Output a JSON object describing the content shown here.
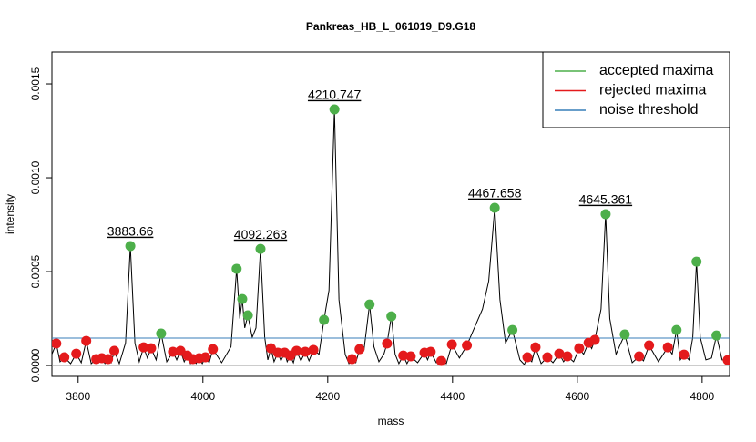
{
  "chart_data": {
    "type": "spectrum",
    "title": "Pankreas_HB_L_061019_D9.G18",
    "x_label": "mass",
    "y_label": "intensity",
    "xlim": [
      3758,
      4844
    ],
    "ylim": [
      -5.8e-05,
      0.00167
    ],
    "xticks": [
      3800,
      4000,
      4200,
      4400,
      4600,
      4800
    ],
    "yticks": [
      {
        "value": 0,
        "label": "0.0000"
      },
      {
        "value": 0.0005,
        "label": "0.0005"
      },
      {
        "value": 0.001,
        "label": "0.0010"
      },
      {
        "value": 0.0015,
        "label": "0.0015"
      }
    ],
    "legend_position": "topright",
    "spectrum": {
      "color": "#000000",
      "x": [
        3758,
        3765,
        3771,
        3778,
        3788,
        3797,
        3805,
        3813,
        3821,
        3829,
        3833,
        3838,
        3843,
        3848,
        3853,
        3858,
        3866,
        3876,
        3883.66,
        3891,
        3898,
        3905,
        3911,
        3917,
        3925,
        3933,
        3942,
        3952,
        3958,
        3964,
        3970,
        3975,
        3980,
        3984,
        3989,
        3994,
        3999,
        4004,
        4010,
        4016,
        4030,
        4045,
        4054,
        4059,
        4063,
        4067,
        4072,
        4079,
        4085,
        4092.263,
        4099,
        4104,
        4109,
        4114,
        4120,
        4125,
        4131,
        4135,
        4140,
        4145,
        4150,
        4157,
        4164,
        4170,
        4177,
        4186,
        4194,
        4202,
        4210.747,
        4218,
        4228,
        4234,
        4239,
        4245,
        4251,
        4258,
        4267,
        4274,
        4282,
        4290,
        4295,
        4302,
        4308,
        4314,
        4321,
        4327,
        4333,
        4344,
        4355,
        4360,
        4365,
        4374,
        4382,
        4390,
        4399,
        4411,
        4423,
        4435,
        4448,
        4458,
        4467.658,
        4476,
        4485,
        4496,
        4508,
        4515,
        4520,
        4527,
        4533,
        4542,
        4552,
        4561,
        4571,
        4578,
        4584,
        4594,
        4603,
        4610,
        4618,
        4623,
        4628,
        4638,
        4645.361,
        4652,
        4662,
        4676,
        4688,
        4699,
        4706,
        4715,
        4730,
        4745,
        4752,
        4759,
        4765,
        4771,
        4779,
        4785,
        4791,
        4797,
        4806,
        4815,
        4823,
        4832,
        4841,
        4844
      ],
      "values": [
        6e-05,
        0.000117,
        2e-05,
        4.4e-05,
        1e-05,
        6.3e-05,
        1.5e-05,
        0.000131,
        1e-05,
        3.4e-05,
        1.5e-05,
        3.9e-05,
        1e-05,
        3.4e-05,
        1.5e-05,
        7.8e-05,
        1e-05,
        0.00012,
        0.000636,
        0.00012,
        2e-05,
        9.7e-05,
        4e-05,
        9.2e-05,
        3e-05,
        0.00017,
        2e-05,
        7.3e-05,
        3e-05,
        7.8e-05,
        2e-05,
        5.3e-05,
        1e-05,
        3.4e-05,
        1e-05,
        3.9e-05,
        1e-05,
        4.4e-05,
        1.5e-05,
        8.7e-05,
        1.5e-05,
        0.0001,
        0.000515,
        0.00025,
        0.000354,
        0.0002,
        0.000267,
        0.00015,
        0.0002,
        0.000621,
        0.00015,
        3e-05,
        9.2e-05,
        2e-05,
        6.8e-05,
        2.5e-05,
        6.8e-05,
        2e-05,
        5.3e-05,
        1.5e-05,
        7.8e-05,
        2.5e-05,
        7.3e-05,
        2.5e-05,
        8.3e-05,
        6e-05,
        0.000243,
        0.0004,
        0.001364,
        0.00035,
        6e-05,
        1e-05,
        3.4e-05,
        1.5e-05,
        8.7e-05,
        8e-05,
        0.000325,
        0.0001,
        2e-05,
        6e-05,
        0.000117,
        0.000262,
        6e-05,
        1e-05,
        5.3e-05,
        1e-05,
        4.9e-05,
        1.5e-05,
        6.8e-05,
        3e-05,
        7.3e-05,
        1.5e-05,
        2.4e-05,
        1e-05,
        0.000112,
        4e-05,
        0.000107,
        0.0002,
        0.0003,
        0.00045,
        0.00084,
        0.00035,
        0.00012,
        0.000189,
        3e-05,
        5e-06,
        4.4e-05,
        2e-05,
        9.7e-05,
        1e-05,
        4.4e-05,
        1.5e-05,
        6.3e-05,
        2e-05,
        4.9e-05,
        2e-05,
        9.2e-05,
        6e-05,
        0.000121,
        9e-05,
        0.000136,
        0.0003,
        0.000806,
        0.00025,
        6e-05,
        0.000165,
        1.5e-05,
        4.9e-05,
        2.5e-05,
        0.000107,
        2e-05,
        9.7e-05,
        6e-05,
        0.000189,
        3e-05,
        5.8e-05,
        3e-05,
        0.00015,
        0.000553,
        0.00015,
        3e-05,
        4e-05,
        0.00016,
        3e-05,
        2.9e-05,
        2e-05
      ]
    },
    "series": [
      {
        "name": "accepted maxima",
        "color": "#4daf4a",
        "x": [
          3883.66,
          3933,
          4054,
          4063,
          4072,
          4092.263,
          4194,
          4210.747,
          4267,
          4302,
          4467.658,
          4496,
          4645.361,
          4676,
          4759,
          4791,
          4823
        ],
        "values": [
          0.000636,
          0.00017,
          0.000515,
          0.000354,
          0.000267,
          0.000621,
          0.000243,
          0.001364,
          0.000325,
          0.000262,
          0.00084,
          0.000189,
          0.000806,
          0.000165,
          0.000189,
          0.000553,
          0.00016
        ]
      },
      {
        "name": "rejected maxima",
        "color": "#e41a1c",
        "x": [
          3765,
          3778,
          3797,
          3813,
          3829,
          3838,
          3848,
          3858,
          3905,
          3917,
          3952,
          3964,
          3975,
          3984,
          3994,
          4004,
          4016,
          4109,
          4120,
          4131,
          4140,
          4150,
          4164,
          4177,
          4239,
          4251,
          4295,
          4321,
          4333,
          4355,
          4365,
          4382,
          4399,
          4423,
          4520,
          4533,
          4552,
          4571,
          4584,
          4603,
          4618,
          4628,
          4699,
          4715,
          4745,
          4771,
          4841
        ],
        "values": [
          0.000117,
          4.4e-05,
          6.3e-05,
          0.000131,
          3.4e-05,
          3.9e-05,
          3.4e-05,
          7.8e-05,
          9.7e-05,
          9.2e-05,
          7.3e-05,
          7.8e-05,
          5.3e-05,
          3.4e-05,
          3.9e-05,
          4.4e-05,
          8.7e-05,
          9.2e-05,
          6.8e-05,
          6.8e-05,
          5.3e-05,
          7.8e-05,
          7.3e-05,
          8.3e-05,
          3.4e-05,
          8.7e-05,
          0.000117,
          5.3e-05,
          4.9e-05,
          6.8e-05,
          7.3e-05,
          2.4e-05,
          0.000112,
          0.000107,
          4.4e-05,
          9.7e-05,
          4.4e-05,
          6.3e-05,
          4.9e-05,
          9.2e-05,
          0.000121,
          0.000136,
          4.9e-05,
          0.000107,
          9.7e-05,
          5.8e-05,
          2.9e-05
        ]
      }
    ],
    "threshold": {
      "name": "noise threshold",
      "color": "#377eb8",
      "value": 0.000146
    },
    "annotations": [
      {
        "x": 3883.66,
        "y": 0.000636,
        "text": "3883.66"
      },
      {
        "x": 4092.263,
        "y": 0.000621,
        "text": "4092.263"
      },
      {
        "x": 4210.747,
        "y": 0.001364,
        "text": "4210.747"
      },
      {
        "x": 4467.658,
        "y": 0.00084,
        "text": "4467.658"
      },
      {
        "x": 4645.361,
        "y": 0.000806,
        "text": "4645.361"
      }
    ]
  }
}
